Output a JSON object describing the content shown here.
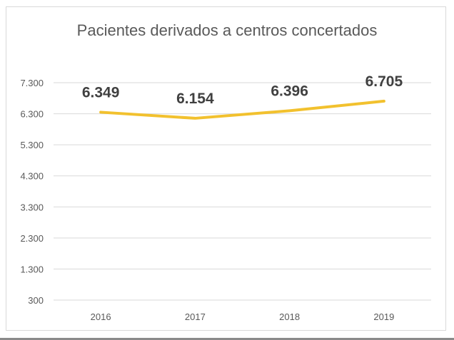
{
  "chart_data": {
    "type": "line",
    "title": "Pacientes derivados a centros concertados",
    "xlabel": "",
    "ylabel": "",
    "categories": [
      "2016",
      "2017",
      "2018",
      "2019"
    ],
    "series": [
      {
        "values": [
          6349,
          6154,
          6396,
          6705
        ],
        "color": "#f2c12e"
      }
    ],
    "data_labels": [
      "6.349",
      "6.154",
      "6.396",
      "6.705"
    ],
    "ylim": [
      300,
      7300
    ],
    "yticks": [
      300,
      1300,
      2300,
      3300,
      4300,
      5300,
      6300,
      7300
    ],
    "ytick_labels": [
      "300",
      "1.300",
      "2.300",
      "3.300",
      "4.300",
      "5.300",
      "6.300",
      "7.300"
    ],
    "grid": true,
    "gridline_color": "#d9d9d9",
    "legend": "none"
  }
}
